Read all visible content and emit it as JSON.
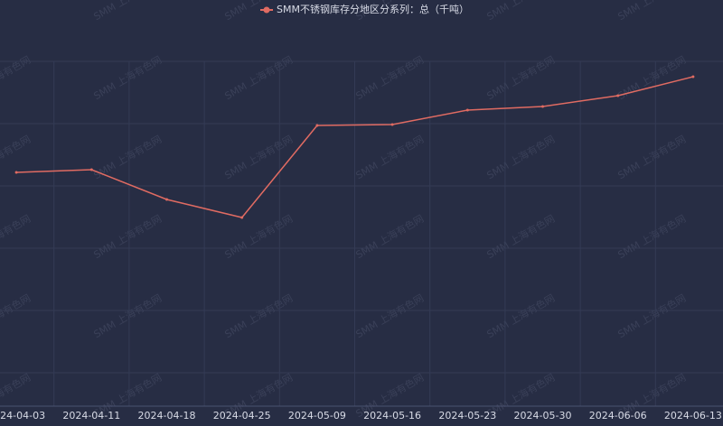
{
  "chart_data": {
    "type": "line",
    "watermark": "SMM 上海有色网",
    "categories": [
      "2024-04-03",
      "2024-04-11",
      "2024-04-18",
      "2024-04-25",
      "2024-05-09",
      "2024-05-16",
      "2024-05-23",
      "2024-05-30",
      "2024-06-06",
      "2024-06-13"
    ],
    "series": [
      {
        "name": "SMM不锈钢库存分地区分系列：总（千吨）",
        "color": "#e06b62",
        "values": [
          259,
          262,
          229,
          209,
          311,
          312,
          328,
          332,
          344,
          365
        ]
      }
    ],
    "ylim": [
      0,
      380
    ]
  }
}
